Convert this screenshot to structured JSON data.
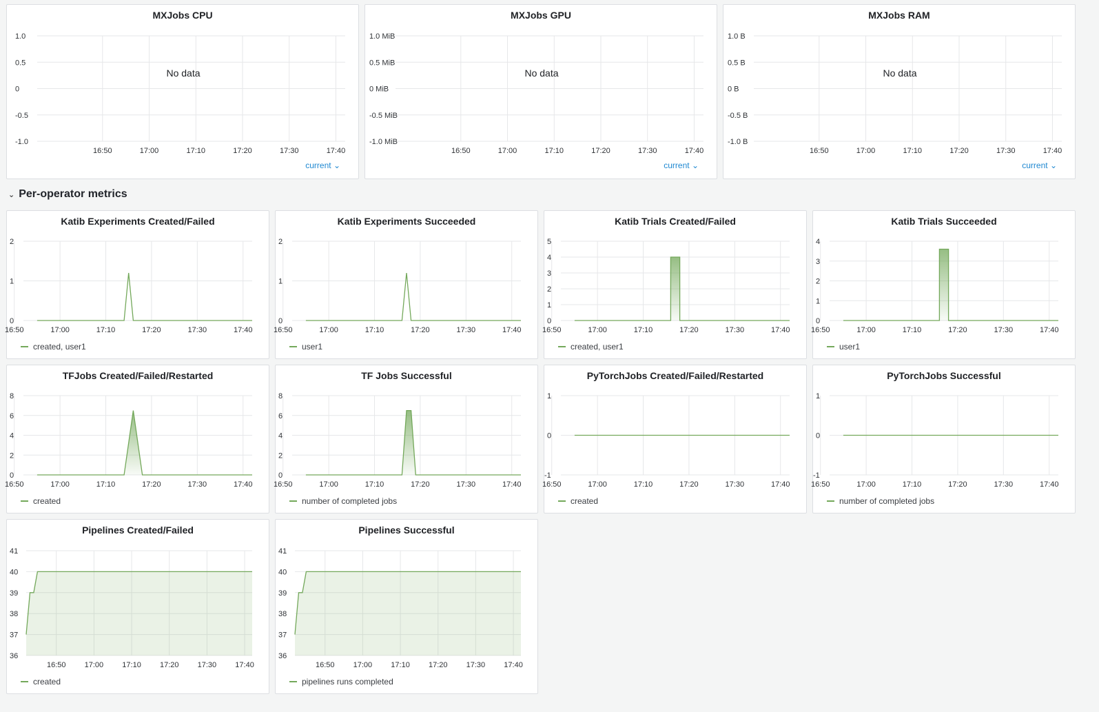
{
  "row": {
    "chevron_icon": "chevron-down-icon",
    "title": "Per-operator metrics"
  },
  "colors": {
    "series": "#73a85a",
    "fill": "rgba(115,168,90,0.15)",
    "link": "#1f88d1",
    "grid": "#e6e7e9"
  },
  "mx_panels": [
    {
      "title": "MXJobs CPU",
      "nodata": "No data",
      "yticks": [
        "1.0",
        "0.5",
        "0",
        "-0.5",
        "-1.0"
      ],
      "xticks": [
        "16:50",
        "17:00",
        "17:10",
        "17:20",
        "17:30",
        "17:40"
      ],
      "current": "current"
    },
    {
      "title": "MXJobs GPU",
      "nodata": "No data",
      "yticks": [
        "1.0 MiB",
        "0.5 MiB",
        "0 MiB",
        "-0.5 MiB",
        "-1.0 MiB"
      ],
      "xticks": [
        "16:50",
        "17:00",
        "17:10",
        "17:20",
        "17:30",
        "17:40"
      ],
      "current": "current"
    },
    {
      "title": "MXJobs RAM",
      "nodata": "No data",
      "yticks": [
        "1.0 B",
        "0.5 B",
        "0 B",
        "-0.5 B",
        "-1.0 B"
      ],
      "xticks": [
        "16:50",
        "17:00",
        "17:10",
        "17:20",
        "17:30",
        "17:40"
      ],
      "current": "current"
    }
  ],
  "chart_data": [
    {
      "type": "line",
      "title": "MXJobs CPU",
      "series": [],
      "x_ticks": [
        "16:50",
        "17:00",
        "17:10",
        "17:20",
        "17:30",
        "17:40"
      ],
      "ylim": [
        -1.0,
        1.0
      ],
      "annotation": "No data"
    },
    {
      "type": "line",
      "title": "MXJobs GPU",
      "series": [],
      "x_ticks": [
        "16:50",
        "17:00",
        "17:10",
        "17:20",
        "17:30",
        "17:40"
      ],
      "ylim": [
        -1.0,
        1.0
      ],
      "y_unit": "MiB",
      "annotation": "No data"
    },
    {
      "type": "line",
      "title": "MXJobs RAM",
      "series": [],
      "x_ticks": [
        "16:50",
        "17:00",
        "17:10",
        "17:20",
        "17:30",
        "17:40"
      ],
      "ylim": [
        -1.0,
        1.0
      ],
      "y_unit": "B",
      "annotation": "No data"
    },
    {
      "type": "line",
      "title": "Katib Experiments Created/Failed",
      "ylim": [
        0,
        2
      ],
      "yticks": [
        "2",
        "1",
        "0"
      ],
      "x_ticks": [
        "16:50",
        "17:00",
        "17:10",
        "17:20",
        "17:30",
        "17:40"
      ],
      "legend": "created, user1",
      "series": [
        {
          "name": "created, user1",
          "points": [
            [
              16.55,
              0
            ],
            [
              17.14,
              0
            ],
            [
              17.15,
              1.2
            ],
            [
              17.16,
              0
            ],
            [
              17.42,
              0
            ]
          ]
        }
      ]
    },
    {
      "type": "line",
      "title": "Katib Experiments Succeeded",
      "ylim": [
        0,
        2
      ],
      "yticks": [
        "2",
        "1",
        "0"
      ],
      "x_ticks": [
        "16:50",
        "17:00",
        "17:10",
        "17:20",
        "17:30",
        "17:40"
      ],
      "legend": "user1",
      "series": [
        {
          "name": "user1",
          "points": [
            [
              16.55,
              0
            ],
            [
              17.16,
              0
            ],
            [
              17.17,
              1.2
            ],
            [
              17.18,
              0
            ],
            [
              17.42,
              0
            ]
          ]
        }
      ]
    },
    {
      "type": "area",
      "title": "Katib Trials Created/Failed",
      "ylim": [
        0,
        5
      ],
      "yticks": [
        "5",
        "4",
        "3",
        "2",
        "1",
        "0"
      ],
      "x_ticks": [
        "16:50",
        "17:00",
        "17:10",
        "17:20",
        "17:30",
        "17:40"
      ],
      "legend": "created, user1",
      "series": [
        {
          "name": "created, user1",
          "points": [
            [
              16.55,
              0
            ],
            [
              17.155,
              0
            ],
            [
              17.165,
              4
            ],
            [
              17.175,
              4
            ],
            [
              17.185,
              0
            ],
            [
              17.42,
              0
            ]
          ]
        }
      ]
    },
    {
      "type": "area",
      "title": "Katib Trials Succeeded",
      "ylim": [
        0,
        4
      ],
      "yticks": [
        "4",
        "3",
        "2",
        "1",
        "0"
      ],
      "x_ticks": [
        "16:50",
        "17:00",
        "17:10",
        "17:20",
        "17:30",
        "17:40"
      ],
      "legend": "user1",
      "series": [
        {
          "name": "user1",
          "points": [
            [
              16.55,
              0
            ],
            [
              17.155,
              0
            ],
            [
              17.165,
              3.6
            ],
            [
              17.175,
              3.6
            ],
            [
              17.185,
              0
            ],
            [
              17.42,
              0
            ]
          ]
        }
      ]
    },
    {
      "type": "area",
      "title": "TFJobs Created/Failed/Restarted",
      "ylim": [
        0,
        8
      ],
      "yticks": [
        "8",
        "6",
        "4",
        "2",
        "0"
      ],
      "x_ticks": [
        "16:50",
        "17:00",
        "17:10",
        "17:20",
        "17:30",
        "17:40"
      ],
      "legend": "created",
      "series": [
        {
          "name": "created",
          "points": [
            [
              16.55,
              0
            ],
            [
              17.14,
              0
            ],
            [
              17.16,
              6.5
            ],
            [
              17.18,
              0
            ],
            [
              17.42,
              0
            ]
          ]
        }
      ]
    },
    {
      "type": "area",
      "title": "TF Jobs Successful",
      "ylim": [
        0,
        8
      ],
      "yticks": [
        "8",
        "6",
        "4",
        "2",
        "0"
      ],
      "x_ticks": [
        "16:50",
        "17:00",
        "17:10",
        "17:20",
        "17:30",
        "17:40"
      ],
      "legend": "number of completed jobs",
      "series": [
        {
          "name": "number of completed jobs",
          "points": [
            [
              16.55,
              0
            ],
            [
              17.16,
              0
            ],
            [
              17.17,
              6.5
            ],
            [
              17.18,
              6.5
            ],
            [
              17.19,
              0
            ],
            [
              17.42,
              0
            ]
          ]
        }
      ]
    },
    {
      "type": "line",
      "title": "PyTorchJobs Created/Failed/Restarted",
      "ylim": [
        -1,
        1
      ],
      "yticks": [
        "1",
        "0",
        "-1"
      ],
      "x_ticks": [
        "16:50",
        "17:00",
        "17:10",
        "17:20",
        "17:30",
        "17:40"
      ],
      "legend": "created",
      "series": [
        {
          "name": "created",
          "points": [
            [
              16.55,
              0
            ],
            [
              17.42,
              0
            ]
          ]
        }
      ]
    },
    {
      "type": "line",
      "title": "PyTorchJobs Successful",
      "ylim": [
        -1,
        1
      ],
      "yticks": [
        "1",
        "0",
        "-1"
      ],
      "x_ticks": [
        "16:50",
        "17:00",
        "17:10",
        "17:20",
        "17:30",
        "17:40"
      ],
      "legend": "number of completed jobs",
      "series": [
        {
          "name": "number of completed jobs",
          "points": [
            [
              16.55,
              0
            ],
            [
              17.42,
              0
            ]
          ]
        }
      ]
    },
    {
      "type": "area",
      "title": "Pipelines Created/Failed",
      "ylim": [
        36,
        41
      ],
      "yticks": [
        "41",
        "40",
        "39",
        "38",
        "37",
        "36"
      ],
      "x_ticks": [
        "16:50",
        "17:00",
        "17:10",
        "17:20",
        "17:30",
        "17:40"
      ],
      "legend": "created",
      "series": [
        {
          "name": "created",
          "points": [
            [
              16.42,
              37
            ],
            [
              16.43,
              39
            ],
            [
              16.44,
              39
            ],
            [
              16.45,
              40
            ],
            [
              17.42,
              40
            ]
          ]
        }
      ]
    },
    {
      "type": "area",
      "title": "Pipelines Successful",
      "ylim": [
        36,
        41
      ],
      "yticks": [
        "41",
        "40",
        "39",
        "38",
        "37",
        "36"
      ],
      "x_ticks": [
        "16:50",
        "17:00",
        "17:10",
        "17:20",
        "17:30",
        "17:40"
      ],
      "legend": "pipelines runs completed",
      "series": [
        {
          "name": "pipelines runs completed",
          "points": [
            [
              16.42,
              37
            ],
            [
              16.43,
              39
            ],
            [
              16.44,
              39
            ],
            [
              16.45,
              40
            ],
            [
              17.42,
              40
            ]
          ]
        }
      ]
    }
  ]
}
